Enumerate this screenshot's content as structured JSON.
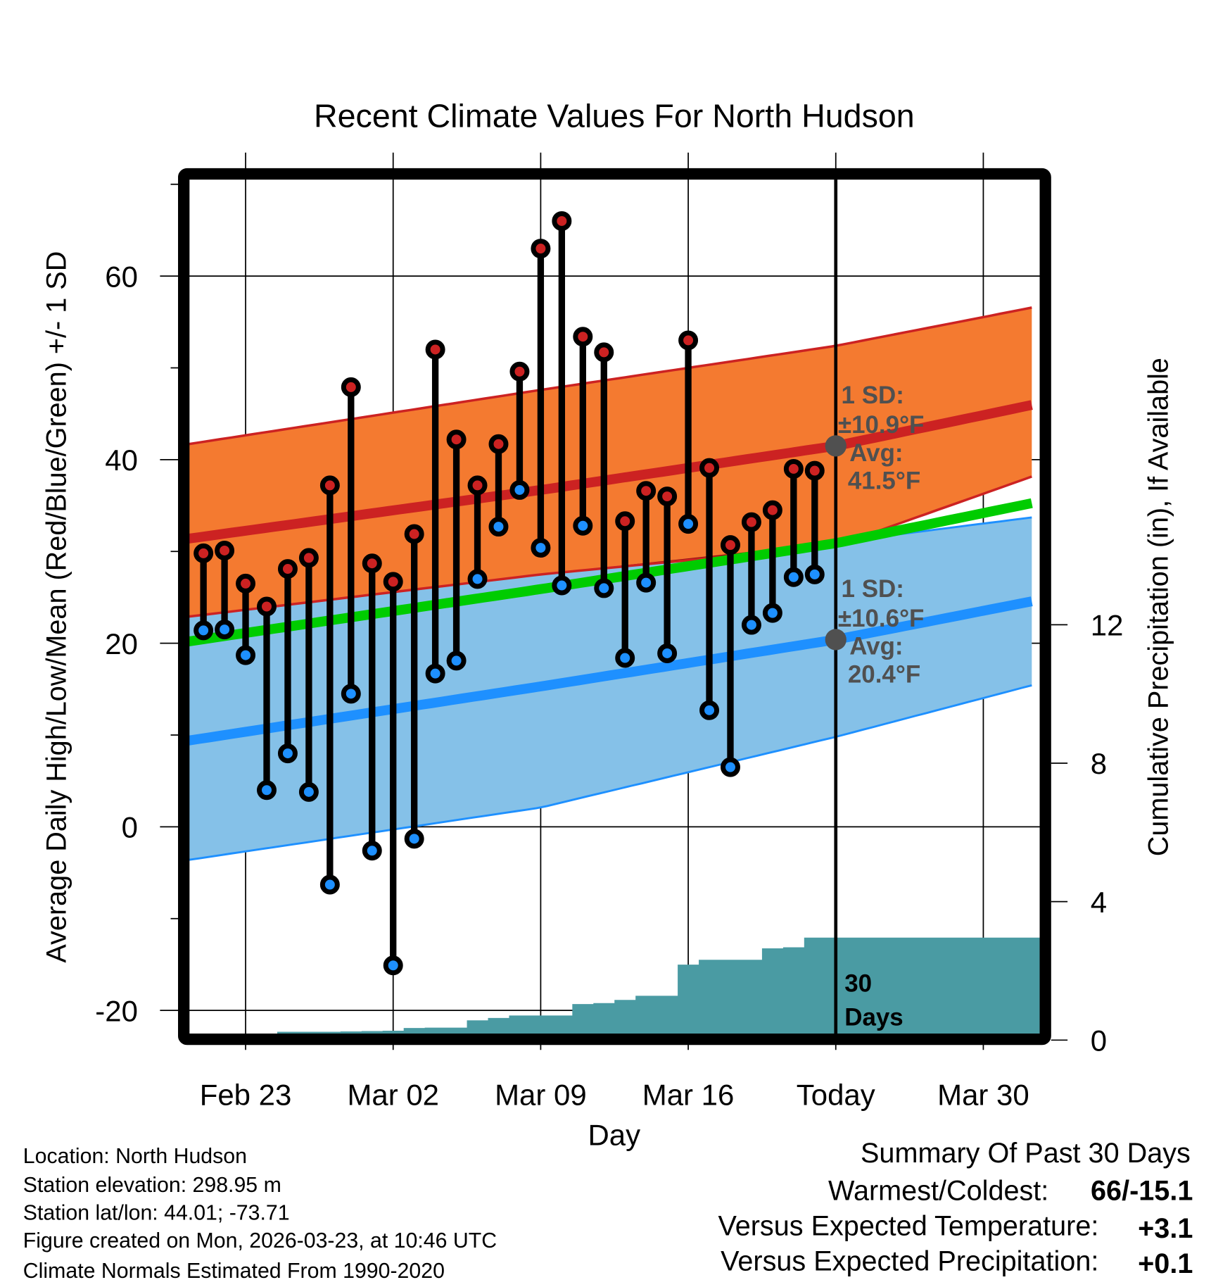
{
  "chart_data": {
    "type": "line",
    "title": "Recent Climate Values For North Hudson",
    "xlabel": "Day",
    "ylabel": "Average Daily High/Low/Mean (Red/Blue/Green) +/- 1 SD",
    "y2label": "Cumulative Precipitation (in), If Available",
    "ylim": [
      -22.5,
      70.6
    ],
    "y2lim": [
      0,
      22
    ],
    "yticks": [
      "60",
      "40",
      "20",
      "0",
      "-20"
    ],
    "yticks_values": [
      60,
      40,
      20,
      0,
      -20
    ],
    "y2ticks": [
      "12",
      "8",
      "4",
      "0"
    ],
    "y2ticks_values": [
      12,
      8,
      4,
      0
    ],
    "xlim_days": [
      -0.7,
      39.6
    ],
    "xticks": [
      "Feb 23",
      "Mar 02",
      "Mar 09",
      "Mar 16",
      "Today",
      "Mar 30"
    ],
    "xticks_days": [
      2,
      9,
      16,
      23,
      30,
      37
    ],
    "today_day": 30,
    "dates": [
      "Feb 21",
      "Feb 22",
      "Feb 23",
      "Feb 24",
      "Feb 25",
      "Feb 26",
      "Feb 27",
      "Feb 28",
      "Mar 01",
      "Mar 02",
      "Mar 03",
      "Mar 04",
      "Mar 05",
      "Mar 06",
      "Mar 07",
      "Mar 08",
      "Mar 09",
      "Mar 10",
      "Mar 11",
      "Mar 12",
      "Mar 13",
      "Mar 14",
      "Mar 15",
      "Mar 16",
      "Mar 17",
      "Mar 18",
      "Mar 19",
      "Mar 20",
      "Mar 21",
      "Mar 22"
    ],
    "highs": [
      29.8,
      30.1,
      26.5,
      24.0,
      28.1,
      29.3,
      37.2,
      47.9,
      28.7,
      26.7,
      31.9,
      52.0,
      42.2,
      37.2,
      41.7,
      49.6,
      63.0,
      66.0,
      53.4,
      51.7,
      33.3,
      36.6,
      36.0,
      53.0,
      39.1,
      30.7,
      33.2,
      34.5,
      39.0,
      38.8
    ],
    "lows": [
      21.4,
      21.5,
      18.7,
      4.0,
      8.0,
      3.8,
      -6.3,
      14.5,
      -2.6,
      -15.1,
      -1.3,
      16.7,
      18.1,
      27.0,
      32.7,
      36.7,
      30.4,
      26.3,
      32.8,
      26.0,
      18.4,
      26.6,
      18.9,
      33.0,
      12.7,
      6.5,
      22.0,
      23.3,
      27.2,
      27.5
    ],
    "normals": {
      "days": [
        -0.7,
        16,
        30,
        39.6
      ],
      "high_mean": [
        31.4,
        36.7,
        41.5,
        46.1
      ],
      "high_upper": [
        41.7,
        47.6,
        52.4,
        56.7
      ],
      "high_lower": [
        22.9,
        27.5,
        30.6,
        38.4
      ],
      "low_mean": [
        9.4,
        15.3,
        20.4,
        24.7
      ],
      "low_upper": [
        22.9,
        27.5,
        31.0,
        33.8
      ],
      "low_lower": [
        -3.6,
        2.1,
        9.8,
        15.6
      ],
      "mean": [
        20.2,
        25.9,
        30.9,
        35.4
      ]
    },
    "precip_cumulative": [
      0,
      0,
      0,
      0,
      0.24,
      0.24,
      0.24,
      0.25,
      0.26,
      0.27,
      0.35,
      0.36,
      0.36,
      0.57,
      0.64,
      0.71,
      0.71,
      0.71,
      1.04,
      1.07,
      1.16,
      1.28,
      1.28,
      2.18,
      2.32,
      2.32,
      2.32,
      2.65,
      2.68,
      2.96
    ],
    "annotations": {
      "high": {
        "sd_label": "1 SD:",
        "sd_value": "±10.9°F",
        "avg_label": "Avg:",
        "avg_value": "41.5°F"
      },
      "low": {
        "sd_label": "1 SD:",
        "sd_value": "±10.6°F",
        "avg_label": "Avg:",
        "avg_value": "20.4°F"
      },
      "period_line1": "30",
      "period_line2": "Days"
    },
    "colors": {
      "high_band": "#F47A30",
      "high_line": "#CC2222",
      "overlap": "#8F0E14",
      "low_band": "#85C1E8",
      "low_line": "#1E90FF",
      "mean_line": "#00CC00",
      "precip": "#4A9BA3",
      "annotation": "#505050"
    }
  },
  "footer": {
    "location": "Location: North Hudson",
    "elevation": "Station elevation: 298.95 m",
    "latlon": "Station lat/lon: 44.01; -73.71",
    "created": "Figure created on Mon, 2026-03-23, at 10:46 UTC",
    "normals": "Climate Normals Estimated From 1990-2020"
  },
  "summary": {
    "title": "Summary Of Past 30 Days",
    "warmest_label": "Warmest/Coldest:",
    "warmest_value": "66/-15.1",
    "temp_label": "Versus Expected Temperature:",
    "temp_value": "+3.1",
    "precip_label": "Versus Expected Precipitation:",
    "precip_value": "+0.1",
    "temp_color": "#CC2222",
    "precip_color": "#22BB22"
  }
}
